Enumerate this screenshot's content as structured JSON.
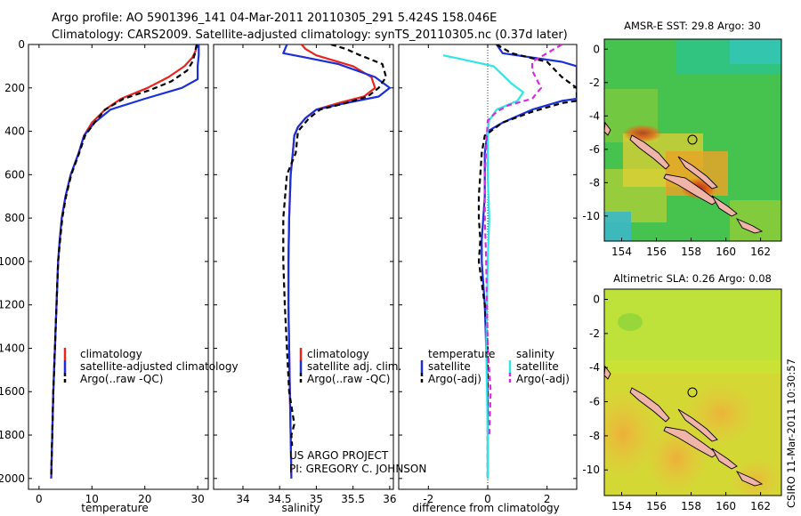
{
  "header": {
    "line1": "Argo profile: AO 5901396_141 04-Mar-2011 20110305_291 5.424S 158.046E",
    "line2": "Climatology: CARS2009. Satellite-adjusted climatology: synTS_20110305.nc (0.37d later)"
  },
  "side_text": "CSIRO 11-Mar-2011 10:30:57",
  "colors": {
    "climatology": "#e8241f",
    "satellite": "#1a2fd8",
    "argo": "#000000",
    "sat_salinity": "#2fe6e6",
    "argo_salinity": "#d92bd9"
  },
  "chart_data": [
    {
      "type": "line",
      "id": "temperature",
      "xlabel": "temperature",
      "ylabel": "",
      "xlim": [
        -2,
        32
      ],
      "ylim": [
        2050,
        0
      ],
      "xticks": [
        0,
        10,
        20,
        30
      ],
      "yticks": [
        0,
        200,
        400,
        600,
        800,
        1000,
        1200,
        1400,
        1600,
        1800,
        2000
      ],
      "legend": [
        "climatology",
        "satellite-adjusted climatology",
        "Argo(..raw -QC)"
      ],
      "series": [
        {
          "name": "climatology",
          "color": "#e8241f",
          "style": "solid",
          "points": [
            [
              29.8,
              0
            ],
            [
              29.6,
              30
            ],
            [
              29.0,
              60
            ],
            [
              27.5,
              100
            ],
            [
              24.5,
              150
            ],
            [
              20.5,
              200
            ],
            [
              15.5,
              250
            ],
            [
              12.5,
              300
            ],
            [
              10.0,
              360
            ],
            [
              8.5,
              420
            ],
            [
              7.5,
              500
            ],
            [
              6.0,
              600
            ],
            [
              5.0,
              700
            ],
            [
              4.3,
              800
            ],
            [
              3.9,
              900
            ],
            [
              3.6,
              1000
            ],
            [
              3.3,
              1200
            ],
            [
              3.0,
              1400
            ],
            [
              2.7,
              1600
            ],
            [
              2.5,
              1800
            ],
            [
              2.3,
              2000
            ]
          ]
        },
        {
          "name": "satellite-adjusted climatology",
          "color": "#1a2fd8",
          "style": "solid",
          "points": [
            [
              30.2,
              0
            ],
            [
              30.2,
              50
            ],
            [
              30.0,
              100
            ],
            [
              30.0,
              160
            ],
            [
              27.0,
              200
            ],
            [
              20.0,
              250
            ],
            [
              13.5,
              300
            ],
            [
              10.5,
              360
            ],
            [
              8.5,
              420
            ],
            [
              7.5,
              500
            ],
            [
              6.0,
              600
            ],
            [
              5.0,
              700
            ],
            [
              4.3,
              800
            ],
            [
              3.9,
              900
            ],
            [
              3.6,
              1000
            ],
            [
              3.3,
              1200
            ],
            [
              3.0,
              1400
            ],
            [
              2.7,
              1600
            ],
            [
              2.5,
              1800
            ],
            [
              2.3,
              2000
            ]
          ]
        },
        {
          "name": "Argo(..raw -QC)",
          "color": "#000000",
          "style": "dashed",
          "points": [
            [
              29.8,
              0
            ],
            [
              29.5,
              40
            ],
            [
              29.0,
              80
            ],
            [
              28.0,
              120
            ],
            [
              25.0,
              170
            ],
            [
              21.0,
              210
            ],
            [
              16.0,
              250
            ],
            [
              12.5,
              300
            ],
            [
              10.5,
              360
            ],
            [
              8.7,
              420
            ],
            [
              7.6,
              500
            ],
            [
              6.1,
              600
            ],
            [
              5.1,
              700
            ],
            [
              4.4,
              800
            ],
            [
              4.0,
              900
            ],
            [
              3.6,
              1000
            ],
            [
              3.3,
              1200
            ],
            [
              3.0,
              1400
            ],
            [
              2.7,
              1600
            ],
            [
              2.5,
              1800
            ],
            [
              2.3,
              1990
            ]
          ]
        }
      ]
    },
    {
      "type": "line",
      "id": "salinity",
      "xlabel": "salinity",
      "xlim": [
        33.6,
        36.05
      ],
      "ylim": [
        2050,
        0
      ],
      "xticks": [
        34,
        34.5,
        35,
        35.5,
        36
      ],
      "legend": [
        "climatology",
        "satellite adj. clim.",
        "Argo(..raw -QC)"
      ],
      "series": [
        {
          "name": "climatology",
          "color": "#e8241f",
          "style": "solid",
          "points": [
            [
              34.8,
              0
            ],
            [
              34.85,
              20
            ],
            [
              35.0,
              50
            ],
            [
              35.5,
              100
            ],
            [
              35.75,
              150
            ],
            [
              35.8,
              200
            ],
            [
              35.65,
              240
            ],
            [
              35.3,
              270
            ],
            [
              35.0,
              300
            ],
            [
              34.85,
              340
            ],
            [
              34.75,
              380
            ],
            [
              34.7,
              420
            ],
            [
              34.68,
              500
            ],
            [
              34.65,
              600
            ],
            [
              34.63,
              800
            ],
            [
              34.62,
              1000
            ],
            [
              34.62,
              1200
            ],
            [
              34.63,
              1400
            ],
            [
              34.64,
              1600
            ],
            [
              34.65,
              1800
            ],
            [
              34.66,
              2000
            ]
          ]
        },
        {
          "name": "satellite adj. clim.",
          "color": "#1a2fd8",
          "style": "solid",
          "points": [
            [
              34.6,
              0
            ],
            [
              34.55,
              40
            ],
            [
              34.85,
              60
            ],
            [
              35.3,
              90
            ],
            [
              35.8,
              150
            ],
            [
              36.0,
              200
            ],
            [
              35.85,
              240
            ],
            [
              35.4,
              270
            ],
            [
              35.0,
              300
            ],
            [
              34.85,
              340
            ],
            [
              34.75,
              380
            ],
            [
              34.7,
              420
            ],
            [
              34.68,
              500
            ],
            [
              34.65,
              600
            ],
            [
              34.63,
              800
            ],
            [
              34.62,
              1000
            ],
            [
              34.62,
              1200
            ],
            [
              34.63,
              1400
            ],
            [
              34.64,
              1600
            ],
            [
              34.65,
              1800
            ],
            [
              34.66,
              2000
            ]
          ]
        },
        {
          "name": "Argo(..raw -QC)",
          "color": "#000000",
          "style": "dashed",
          "points": [
            [
              35.2,
              0
            ],
            [
              35.4,
              20
            ],
            [
              35.6,
              50
            ],
            [
              35.9,
              90
            ],
            [
              35.95,
              150
            ],
            [
              35.85,
              200
            ],
            [
              35.7,
              240
            ],
            [
              35.4,
              270
            ],
            [
              35.05,
              300
            ],
            [
              34.9,
              340
            ],
            [
              34.75,
              400
            ],
            [
              34.72,
              500
            ],
            [
              34.6,
              600
            ],
            [
              34.55,
              800
            ],
            [
              34.55,
              1000
            ],
            [
              34.57,
              1200
            ],
            [
              34.6,
              1400
            ],
            [
              34.63,
              1600
            ],
            [
              34.7,
              1750
            ],
            [
              34.66,
              1800
            ],
            [
              34.67,
              1850
            ]
          ]
        }
      ]
    },
    {
      "type": "line",
      "id": "difference",
      "xlabel": "difference from climatology",
      "xlim": [
        -3,
        3
      ],
      "ylim": [
        2050,
        0
      ],
      "xticks": [
        -2,
        0,
        2
      ],
      "legend": [
        "temperature",
        "satellite",
        "Argo(-adj)",
        "salinity",
        "satellite",
        "Argo(-adj)"
      ],
      "series": [
        {
          "name": "temperature satellite",
          "color": "#1a2fd8",
          "style": "solid",
          "points": [
            [
              0.3,
              0
            ],
            [
              0.5,
              40
            ],
            [
              2.5,
              80
            ],
            [
              3.0,
              100
            ],
            [
              3.0,
              250
            ],
            [
              2.5,
              260
            ],
            [
              1.5,
              300
            ],
            [
              0.5,
              360
            ],
            [
              0.0,
              400
            ],
            [
              -0.1,
              500
            ],
            [
              -0.1,
              700
            ],
            [
              -0.15,
              800
            ],
            [
              -0.2,
              900
            ],
            [
              -0.2,
              1000
            ],
            [
              -0.1,
              1200
            ],
            [
              -0.05,
              1400
            ],
            [
              0.0,
              1600
            ],
            [
              0.0,
              1800
            ],
            [
              0.0,
              2000
            ]
          ]
        },
        {
          "name": "temperature Argo(-adj)",
          "color": "#000000",
          "style": "dashed",
          "points": [
            [
              0.3,
              0
            ],
            [
              0.8,
              40
            ],
            [
              2.0,
              80
            ],
            [
              2.5,
              150
            ],
            [
              3.0,
              200
            ],
            [
              3.0,
              260
            ],
            [
              2.5,
              270
            ],
            [
              1.5,
              310
            ],
            [
              0.5,
              360
            ],
            [
              -0.1,
              420
            ],
            [
              -0.2,
              500
            ],
            [
              -0.3,
              700
            ],
            [
              -0.3,
              800
            ],
            [
              -0.25,
              900
            ],
            [
              -0.3,
              1000
            ],
            [
              -0.1,
              1200
            ],
            [
              0.0,
              1400
            ],
            [
              0.0,
              1600
            ],
            [
              0.0,
              1800
            ],
            [
              0.0,
              2000
            ]
          ]
        },
        {
          "name": "salinity satellite",
          "color": "#2fe6e6",
          "style": "solid",
          "points": [
            [
              -1.5,
              50
            ],
            [
              -0.8,
              70
            ],
            [
              0.2,
              100
            ],
            [
              0.8,
              180
            ],
            [
              1.2,
              220
            ],
            [
              1.0,
              260
            ],
            [
              0.3,
              300
            ],
            [
              0.05,
              350
            ],
            [
              0.0,
              400
            ],
            [
              0.0,
              600
            ],
            [
              0.05,
              800
            ],
            [
              0.0,
              1000
            ],
            [
              -0.05,
              1400
            ],
            [
              0.0,
              1800
            ],
            [
              0.0,
              2000
            ]
          ]
        },
        {
          "name": "salinity Argo(-adj)",
          "color": "#d92bd9",
          "style": "dashed",
          "points": [
            [
              2.5,
              0
            ],
            [
              2.0,
              40
            ],
            [
              1.5,
              80
            ],
            [
              1.5,
              120
            ],
            [
              1.8,
              200
            ],
            [
              1.5,
              250
            ],
            [
              0.7,
              280
            ],
            [
              0.3,
              310
            ],
            [
              0.0,
              350
            ],
            [
              -0.1,
              600
            ],
            [
              -0.1,
              800
            ],
            [
              -0.05,
              1000
            ],
            [
              0.0,
              1400
            ],
            [
              0.1,
              1600
            ],
            [
              0.05,
              1800
            ]
          ]
        }
      ]
    }
  ],
  "maps": [
    {
      "id": "sst",
      "title": "AMSR-E SST: 29.8 Argo: 30",
      "xticks": [
        "154",
        "156",
        "158",
        "160",
        "162"
      ],
      "yticks": [
        "0",
        "-2",
        "-4",
        "-6",
        "-8",
        "-10"
      ],
      "lon_range": [
        153,
        163.2
      ],
      "lat_range": [
        -11.5,
        0.6
      ],
      "argo_lon": 158.05,
      "argo_lat": -5.42
    },
    {
      "id": "sla",
      "title": "Altimetric SLA: 0.26 Argo: 0.08",
      "xticks": [
        "154",
        "156",
        "158",
        "160",
        "162"
      ],
      "yticks": [
        "0",
        "-2",
        "-4",
        "-6",
        "-8",
        "-10"
      ],
      "lon_range": [
        153,
        163.2
      ],
      "lat_range": [
        -11.5,
        0.6
      ],
      "argo_lon": 158.05,
      "argo_lat": -5.42
    }
  ],
  "annotations": {
    "project": "US ARGO PROJECT",
    "pi": "PI: GREGORY C. JOHNSON"
  }
}
